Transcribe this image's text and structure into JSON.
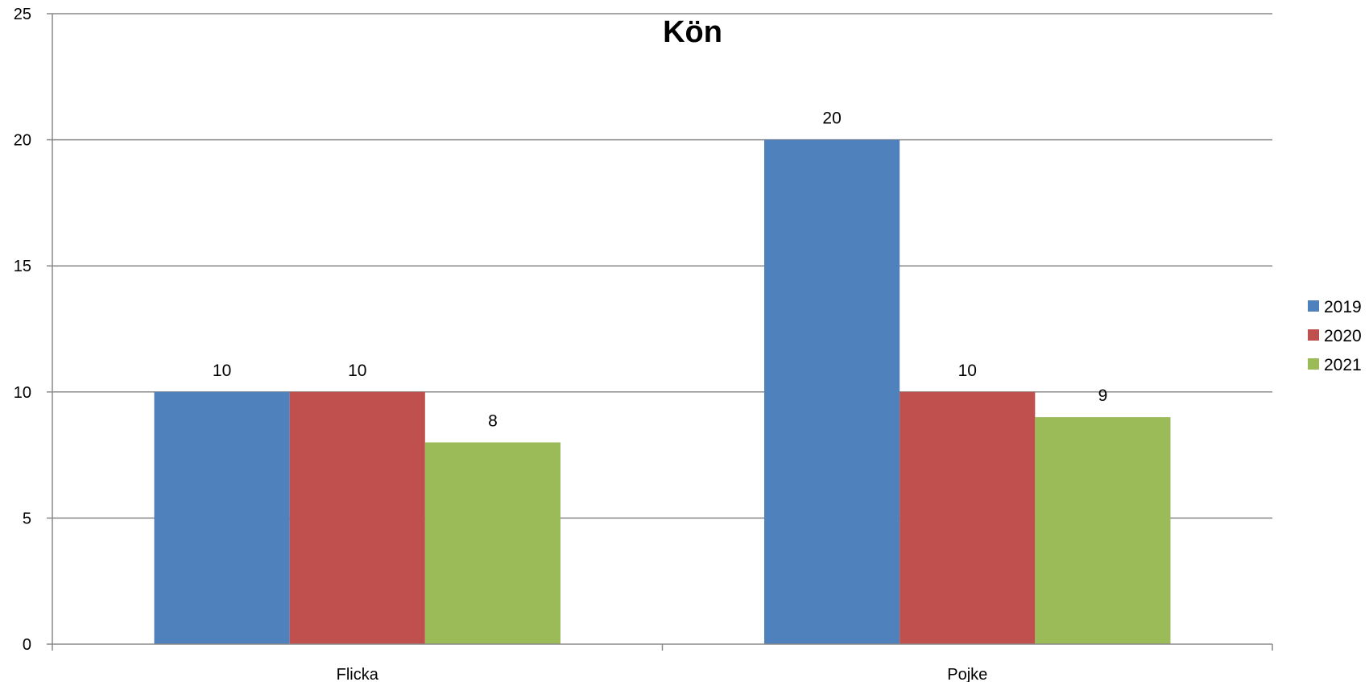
{
  "chart_data": {
    "type": "bar",
    "title": "Kön",
    "xlabel": "",
    "ylabel": "",
    "categories": [
      "Flicka",
      "Pojke"
    ],
    "series": [
      {
        "name": "2019",
        "color": "#4F81BD",
        "values": [
          10,
          20
        ]
      },
      {
        "name": "2020",
        "color": "#C0504D",
        "values": [
          10,
          10
        ]
      },
      {
        "name": "2021",
        "color": "#9BBB59",
        "values": [
          8,
          9
        ]
      }
    ],
    "ylim": [
      0,
      25
    ],
    "yticks": [
      0,
      5,
      10,
      15,
      20,
      25
    ],
    "grid": true,
    "legend_position": "right",
    "data_labels": true
  }
}
